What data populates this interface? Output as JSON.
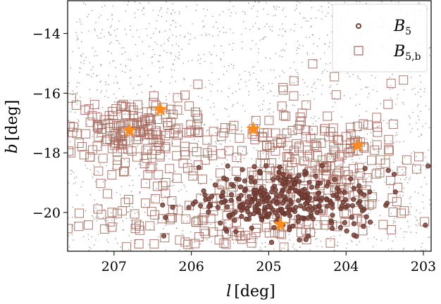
{
  "chart_data": {
    "type": "scatter",
    "title": "",
    "xlabel_var": "l",
    "xlabel_unit": "[deg]",
    "ylabel_var": "b",
    "ylabel_unit": "[deg]",
    "xlim": [
      207.6,
      202.9
    ],
    "ylim": [
      -21.3,
      -12.9
    ],
    "x_inverted": true,
    "xticks": [
      207,
      206,
      205,
      204,
      203
    ],
    "yticks": [
      -14,
      -16,
      -18,
      -20
    ],
    "xtick_labels": [
      "207",
      "206",
      "205",
      "204",
      "203"
    ],
    "ytick_labels": [
      "−14",
      "−16",
      "−18",
      "−20"
    ],
    "grid": false,
    "legend_placement": "top-right",
    "legend": [
      {
        "symbol": "B",
        "subscript": "5",
        "marker": "circle"
      },
      {
        "symbol": "B",
        "subscript": "5,b",
        "marker": "square"
      }
    ],
    "colors": {
      "B5": "#7b4238",
      "B5b": "#a86a5e",
      "background_points": "#8a8a8a",
      "stars": "#ff8c1a"
    },
    "series": [
      {
        "name": "background",
        "marker": "dot",
        "distribution": "uniform field sample over the plotted area",
        "count": 1800
      },
      {
        "name": "B5",
        "marker": "circle",
        "center_x": 204.8,
        "center_y": -19.6,
        "spread_x": 0.55,
        "spread_y": 0.55,
        "count": 320
      },
      {
        "name": "B5,b",
        "marker": "square",
        "count": 600,
        "clusters": [
          {
            "center_x": 206.8,
            "center_y": -17.3,
            "spread_x": 0.45,
            "spread_y": 0.55,
            "weight": 0.28
          },
          {
            "center_x": 205.0,
            "center_y": -18.3,
            "spread_x": 0.8,
            "spread_y": 1.0,
            "weight": 0.32
          },
          {
            "center_x": 204.0,
            "center_y": -18.8,
            "spread_x": 0.5,
            "spread_y": 1.3,
            "weight": 0.2
          },
          {
            "center_x": 205.8,
            "center_y": -20.3,
            "spread_x": 1.2,
            "spread_y": 0.5,
            "weight": 0.2
          }
        ]
      }
    ],
    "stars": [
      {
        "x": 206.8,
        "y": -17.25
      },
      {
        "x": 206.4,
        "y": -16.55
      },
      {
        "x": 205.2,
        "y": -17.2
      },
      {
        "x": 204.85,
        "y": -20.4
      },
      {
        "x": 203.85,
        "y": -17.75
      }
    ]
  }
}
